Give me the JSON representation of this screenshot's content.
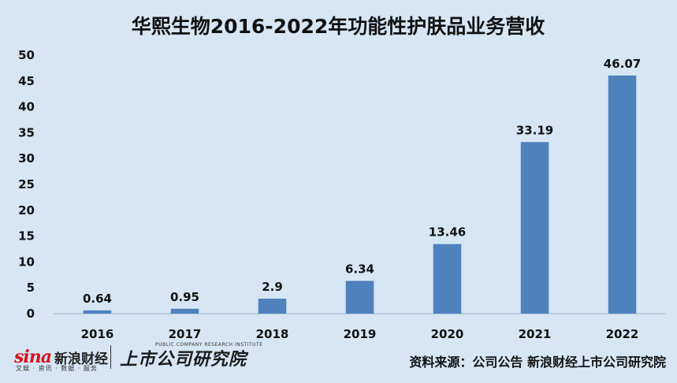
{
  "chart_data": {
    "type": "bar",
    "title": "华熙生物2016-2022年功能性护肤品业务营收",
    "xlabel": "",
    "ylabel": "",
    "categories": [
      "2016",
      "2017",
      "2018",
      "2019",
      "2020",
      "2021",
      "2022"
    ],
    "values": [
      0.64,
      0.95,
      2.9,
      6.34,
      13.46,
      33.19,
      46.07
    ],
    "data_labels": [
      "0.64",
      "0.95",
      "2.9",
      "6.34",
      "13.46",
      "33.19",
      "46.07"
    ],
    "yticks": [
      0,
      5,
      10,
      15,
      20,
      25,
      30,
      35,
      40,
      45,
      50
    ],
    "ylim": [
      0,
      50
    ],
    "grid": false,
    "legend": "none",
    "bar_color": "#4f81bd"
  },
  "footer": {
    "brand_logo": "sina",
    "brand_name": "新浪财经",
    "brand_sub": "文娱 · 资讯 · 数据 · 服务",
    "research_logo": "上市公司研究院",
    "research_en": "PUBLIC COMPANY RESEARCH INSTITUTE",
    "source": "资料来源：公司公告 新浪财经上市公司研究院"
  }
}
